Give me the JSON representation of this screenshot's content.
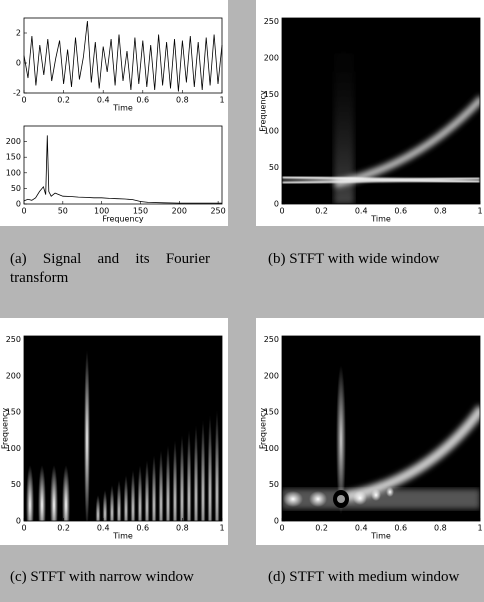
{
  "panels": [
    {
      "caption": "(a) Signal and its Fourier transform",
      "plots": [
        {
          "type": "line",
          "xlabel": "Time",
          "xlim": [
            0,
            1
          ],
          "ylim": [
            -2,
            3
          ],
          "xticks": [
            0,
            0.2,
            0.4,
            0.6,
            0.8,
            1
          ],
          "yticks": [
            -2,
            0,
            2
          ],
          "color": "#000000",
          "x": [
            0,
            0.02,
            0.04,
            0.06,
            0.08,
            0.1,
            0.12,
            0.14,
            0.16,
            0.18,
            0.2,
            0.22,
            0.24,
            0.26,
            0.28,
            0.3,
            0.32,
            0.34,
            0.36,
            0.38,
            0.4,
            0.42,
            0.44,
            0.46,
            0.48,
            0.5,
            0.52,
            0.54,
            0.56,
            0.58,
            0.6,
            0.62,
            0.64,
            0.66,
            0.68,
            0.7,
            0.72,
            0.74,
            0.76,
            0.78,
            0.8,
            0.82,
            0.84,
            0.86,
            0.88,
            0.9,
            0.92,
            0.94,
            0.96,
            0.98,
            1
          ],
          "values": [
            0.5,
            -1,
            1.8,
            -1.5,
            1.2,
            -0.8,
            1.6,
            -1.2,
            0.3,
            1.5,
            -1.4,
            0.9,
            -1.6,
            1.7,
            -1.1,
            0.4,
            2.8,
            -1.3,
            1.4,
            -1.7,
            1.1,
            -0.6,
            1.6,
            -1.5,
            1.9,
            -1.2,
            0.8,
            -1.8,
            1.7,
            -1.4,
            1.5,
            -1.6,
            1.2,
            -1.8,
            1.9,
            -1.5,
            1.4,
            -1.7,
            1.6,
            -1.9,
            1.5,
            -1.3,
            1.8,
            -1.6,
            1.4,
            -1.8,
            1.7,
            -1.5,
            1.9,
            -1.4,
            1.2
          ]
        },
        {
          "type": "line",
          "xlabel": "Frequency",
          "xlim": [
            0,
            255
          ],
          "ylim": [
            0,
            250
          ],
          "xticks": [
            0,
            50,
            100,
            150,
            200,
            250
          ],
          "yticks": [
            0,
            50,
            100,
            150,
            200
          ],
          "color": "#000000",
          "x": [
            0,
            5,
            10,
            15,
            20,
            25,
            28,
            30,
            32,
            35,
            40,
            45,
            50,
            60,
            70,
            80,
            90,
            100,
            110,
            120,
            130,
            140,
            150,
            160,
            180,
            200,
            220,
            240,
            255
          ],
          "values": [
            10,
            15,
            12,
            20,
            40,
            55,
            30,
            220,
            40,
            25,
            35,
            30,
            25,
            24,
            22,
            21,
            20,
            20,
            18,
            17,
            16,
            14,
            8,
            5,
            4,
            3,
            3,
            3,
            3
          ]
        }
      ]
    },
    {
      "caption": "(b) STFT with wide window",
      "plots": [
        {
          "type": "spectrogram",
          "xlabel": "Time",
          "ylabel": "Frequency",
          "xlim": [
            0,
            1
          ],
          "ylim": [
            0,
            255
          ],
          "xticks": [
            0,
            0.2,
            0.4,
            0.6,
            0.8,
            1
          ],
          "yticks": [
            0,
            50,
            100,
            150,
            200,
            250
          ]
        }
      ]
    },
    {
      "caption": "(c) STFT with narrow window",
      "plots": [
        {
          "type": "spectrogram",
          "xlabel": "Time",
          "ylabel": "Frequency",
          "xlim": [
            0,
            1
          ],
          "ylim": [
            0,
            255
          ],
          "xticks": [
            0,
            0.2,
            0.4,
            0.6,
            0.8,
            1
          ],
          "yticks": [
            0,
            50,
            100,
            150,
            200,
            250
          ]
        }
      ]
    },
    {
      "caption": "(d) STFT with medium window",
      "plots": [
        {
          "type": "spectrogram",
          "xlabel": "Time",
          "ylabel": "Frequency",
          "xlim": [
            0,
            1
          ],
          "ylim": [
            0,
            255
          ],
          "xticks": [
            0,
            0.2,
            0.4,
            0.6,
            0.8,
            1
          ],
          "yticks": [
            0,
            50,
            100,
            150,
            200,
            250
          ]
        }
      ]
    }
  ]
}
